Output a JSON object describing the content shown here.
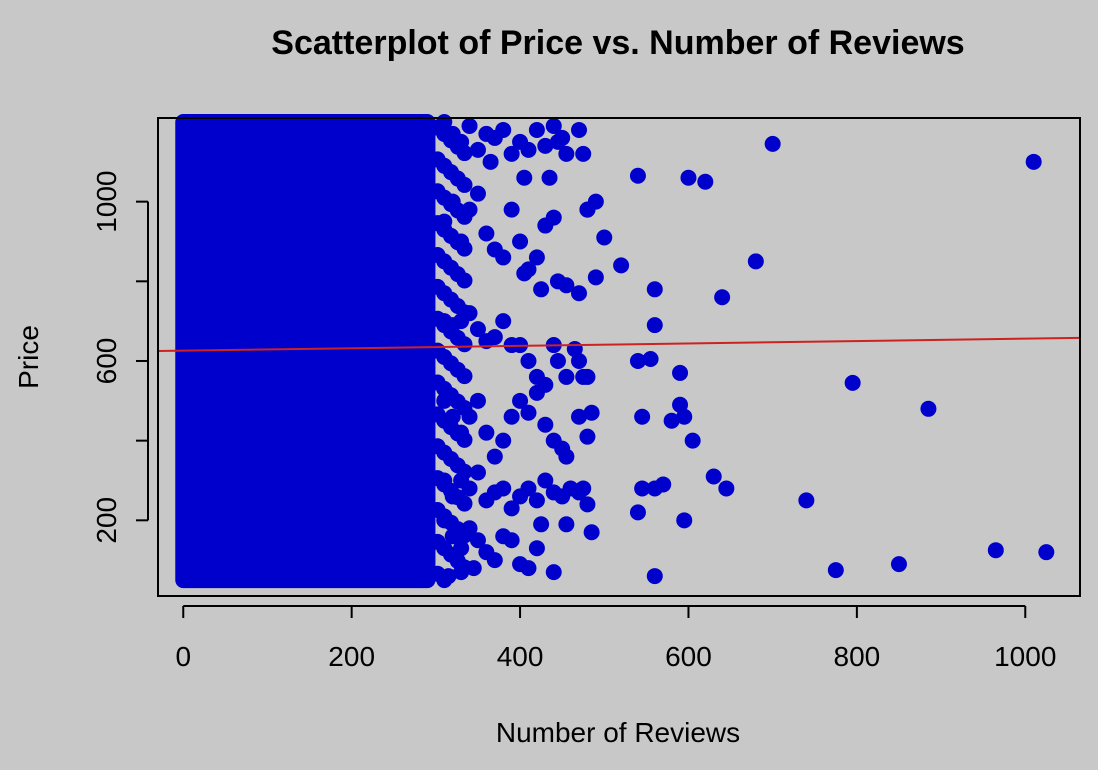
{
  "chart_data": {
    "type": "scatter",
    "title": "Scatterplot of Price vs. Number of Reviews",
    "xlabel": "Number of Reviews",
    "ylabel": "Price",
    "xlim": [
      -30,
      1065
    ],
    "ylim": [
      10,
      1210
    ],
    "x_ticks": [
      0,
      200,
      400,
      600,
      800,
      1000
    ],
    "y_ticks": [
      200,
      600,
      1000
    ],
    "y_ticks_unlabeled": [
      400,
      800
    ],
    "colors": {
      "points": "#0000cc",
      "trend": "#cc2222",
      "background": "#c8c8c8"
    },
    "dense_region": {
      "x_range": [
        0,
        290
      ],
      "y_range": [
        50,
        1200
      ]
    },
    "trend_line": {
      "x": [
        -30,
        1065
      ],
      "y": [
        625,
        658
      ]
    },
    "points": [
      [
        310,
        1200
      ],
      [
        320,
        1170
      ],
      [
        330,
        1150
      ],
      [
        340,
        1190
      ],
      [
        350,
        1130
      ],
      [
        360,
        1170
      ],
      [
        365,
        1100
      ],
      [
        370,
        1160
      ],
      [
        380,
        1180
      ],
      [
        390,
        1120
      ],
      [
        400,
        1150
      ],
      [
        405,
        1060
      ],
      [
        410,
        1130
      ],
      [
        420,
        1180
      ],
      [
        430,
        1140
      ],
      [
        435,
        1060
      ],
      [
        440,
        1190
      ],
      [
        445,
        1150
      ],
      [
        450,
        1160
      ],
      [
        455,
        1120
      ],
      [
        470,
        1180
      ],
      [
        475,
        1120
      ],
      [
        480,
        980
      ],
      [
        490,
        1000
      ],
      [
        500,
        910
      ],
      [
        520,
        840
      ],
      [
        540,
        1065
      ],
      [
        560,
        780
      ],
      [
        560,
        690
      ],
      [
        600,
        1060
      ],
      [
        620,
        1050
      ],
      [
        640,
        760
      ],
      [
        680,
        850
      ],
      [
        700,
        1145
      ],
      [
        1010,
        1100
      ],
      [
        310,
        950
      ],
      [
        320,
        1000
      ],
      [
        330,
        900
      ],
      [
        340,
        980
      ],
      [
        350,
        1020
      ],
      [
        360,
        920
      ],
      [
        370,
        880
      ],
      [
        380,
        860
      ],
      [
        390,
        980
      ],
      [
        400,
        900
      ],
      [
        405,
        820
      ],
      [
        410,
        830
      ],
      [
        420,
        860
      ],
      [
        425,
        780
      ],
      [
        430,
        940
      ],
      [
        440,
        960
      ],
      [
        445,
        800
      ],
      [
        455,
        790
      ],
      [
        470,
        770
      ],
      [
        480,
        980
      ],
      [
        490,
        810
      ],
      [
        310,
        700
      ],
      [
        320,
        690
      ],
      [
        330,
        700
      ],
      [
        340,
        720
      ],
      [
        350,
        680
      ],
      [
        360,
        650
      ],
      [
        370,
        660
      ],
      [
        380,
        700
      ],
      [
        390,
        640
      ],
      [
        400,
        640
      ],
      [
        410,
        600
      ],
      [
        420,
        560
      ],
      [
        430,
        540
      ],
      [
        440,
        640
      ],
      [
        445,
        600
      ],
      [
        455,
        560
      ],
      [
        465,
        630
      ],
      [
        470,
        600
      ],
      [
        475,
        560
      ],
      [
        480,
        560
      ],
      [
        540,
        600
      ],
      [
        555,
        605
      ],
      [
        590,
        570
      ],
      [
        795,
        545
      ],
      [
        310,
        500
      ],
      [
        320,
        460
      ],
      [
        330,
        420
      ],
      [
        340,
        460
      ],
      [
        350,
        500
      ],
      [
        360,
        420
      ],
      [
        370,
        360
      ],
      [
        380,
        400
      ],
      [
        390,
        460
      ],
      [
        400,
        500
      ],
      [
        410,
        470
      ],
      [
        420,
        520
      ],
      [
        430,
        440
      ],
      [
        440,
        400
      ],
      [
        450,
        380
      ],
      [
        455,
        360
      ],
      [
        470,
        460
      ],
      [
        485,
        470
      ],
      [
        480,
        410
      ],
      [
        545,
        460
      ],
      [
        580,
        450
      ],
      [
        590,
        490
      ],
      [
        595,
        460
      ],
      [
        605,
        400
      ],
      [
        885,
        480
      ],
      [
        310,
        300
      ],
      [
        320,
        260
      ],
      [
        330,
        300
      ],
      [
        340,
        280
      ],
      [
        350,
        320
      ],
      [
        360,
        250
      ],
      [
        370,
        270
      ],
      [
        380,
        280
      ],
      [
        390,
        230
      ],
      [
        400,
        260
      ],
      [
        410,
        280
      ],
      [
        420,
        250
      ],
      [
        430,
        300
      ],
      [
        440,
        270
      ],
      [
        450,
        260
      ],
      [
        460,
        280
      ],
      [
        470,
        270
      ],
      [
        475,
        280
      ],
      [
        480,
        240
      ],
      [
        540,
        220
      ],
      [
        545,
        280
      ],
      [
        560,
        280
      ],
      [
        570,
        290
      ],
      [
        595,
        200
      ],
      [
        630,
        310
      ],
      [
        645,
        280
      ],
      [
        740,
        250
      ],
      [
        310,
        200
      ],
      [
        320,
        160
      ],
      [
        330,
        130
      ],
      [
        340,
        180
      ],
      [
        350,
        150
      ],
      [
        360,
        120
      ],
      [
        370,
        100
      ],
      [
        380,
        160
      ],
      [
        390,
        150
      ],
      [
        400,
        90
      ],
      [
        410,
        80
      ],
      [
        420,
        130
      ],
      [
        425,
        190
      ],
      [
        440,
        70
      ],
      [
        455,
        190
      ],
      [
        485,
        170
      ],
      [
        560,
        60
      ],
      [
        775,
        75
      ],
      [
        850,
        90
      ],
      [
        965,
        125
      ],
      [
        1025,
        120
      ],
      [
        315,
        60
      ],
      [
        330,
        70
      ],
      [
        345,
        80
      ]
    ]
  }
}
